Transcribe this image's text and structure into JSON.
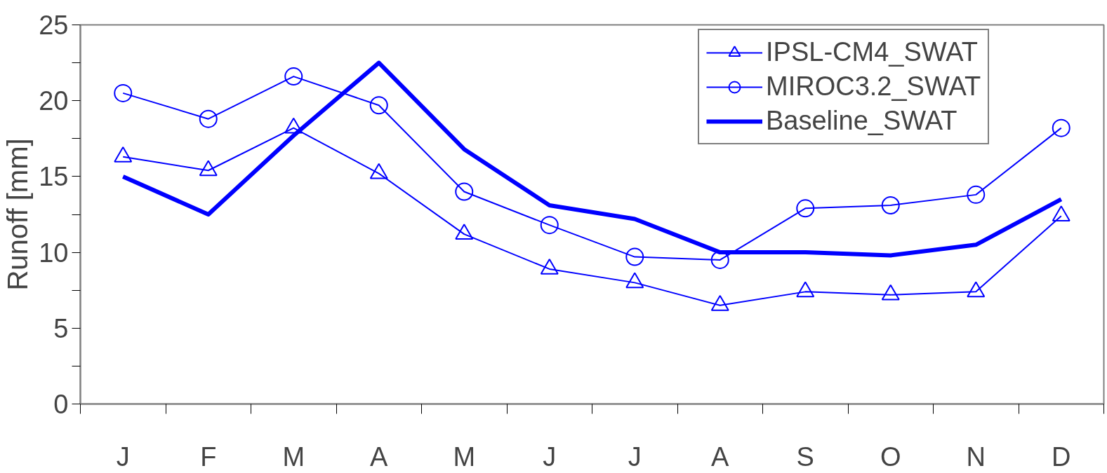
{
  "chart_data": {
    "type": "line",
    "ylabel": "Runoff [mm]",
    "categories": [
      "J",
      "F",
      "M",
      "A",
      "M",
      "J",
      "J",
      "A",
      "S",
      "O",
      "N",
      "D"
    ],
    "ylim": [
      0,
      25
    ],
    "yticks": [
      0,
      5,
      10,
      15,
      20,
      25
    ],
    "grid": false,
    "legend": "top right",
    "series": [
      {
        "name": "IPSL-CM4_SWAT",
        "color": "#0000ff",
        "marker": "triangle",
        "values": [
          16.3,
          15.4,
          18.2,
          15.2,
          11.2,
          8.9,
          8.0,
          6.5,
          7.4,
          7.2,
          7.4,
          12.4
        ]
      },
      {
        "name": "MIROC3.2_SWAT",
        "color": "#0000ff",
        "marker": "circle",
        "values": [
          20.5,
          18.8,
          21.6,
          19.7,
          14.0,
          11.8,
          9.7,
          9.5,
          12.9,
          13.1,
          13.8,
          18.2
        ]
      },
      {
        "name": "Baseline_SWAT",
        "color": "#0000ff",
        "marker": "none",
        "values": [
          15.0,
          12.5,
          17.7,
          22.5,
          16.8,
          13.1,
          12.2,
          10.0,
          10.0,
          9.8,
          10.5,
          13.5
        ]
      }
    ]
  }
}
